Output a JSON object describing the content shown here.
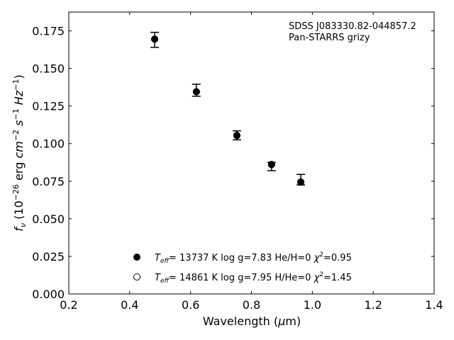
{
  "chart_data": {
    "type": "scatter",
    "xlabel": "Wavelength (μm)",
    "ylabel": "f_ν (10^−26 erg cm^−2 s^−1 Hz^−1)",
    "xlim": [
      0.2,
      1.4
    ],
    "ylim": [
      0.0,
      0.1875
    ],
    "xticks": [
      "0.2",
      "0.4",
      "0.6",
      "0.8",
      "1.0",
      "1.2",
      "1.4"
    ],
    "yticks": [
      "0.000",
      "0.025",
      "0.050",
      "0.075",
      "0.100",
      "0.125",
      "0.150",
      "0.175"
    ],
    "grid": false,
    "annotation": {
      "object": "SDSS J083330.82-044857.2",
      "survey": "Pan-STARRS grizy"
    },
    "observed": {
      "x": [
        0.482,
        0.619,
        0.752,
        0.866,
        0.962
      ],
      "y": [
        0.169,
        0.135,
        0.1055,
        0.0855,
        0.0755
      ],
      "yerr_low": [
        0.005,
        0.0035,
        0.003,
        0.0035,
        0.003
      ],
      "yerr_high": [
        0.005,
        0.0045,
        0.003,
        0.002,
        0.004
      ]
    },
    "series": [
      {
        "name": "T_eff= 13737 K  log g=7.83  He/H=0  χ²=0.95",
        "marker": "filled",
        "x": [
          0.482,
          0.619,
          0.752,
          0.866,
          0.962
        ],
        "y": [
          0.1695,
          0.1345,
          0.1053,
          0.0862,
          0.0743
        ]
      },
      {
        "name": "T_eff= 14861 K  log g=7.95  H/He=0  χ²=1.45",
        "marker": "open",
        "x": [
          0.482,
          0.619,
          0.752,
          0.866,
          0.962
        ],
        "y": [
          0.1695,
          0.1345,
          0.1055,
          0.086,
          0.0745
        ]
      }
    ],
    "legend_position": "bottom-center",
    "colors": {
      "marker": "#000000"
    }
  }
}
